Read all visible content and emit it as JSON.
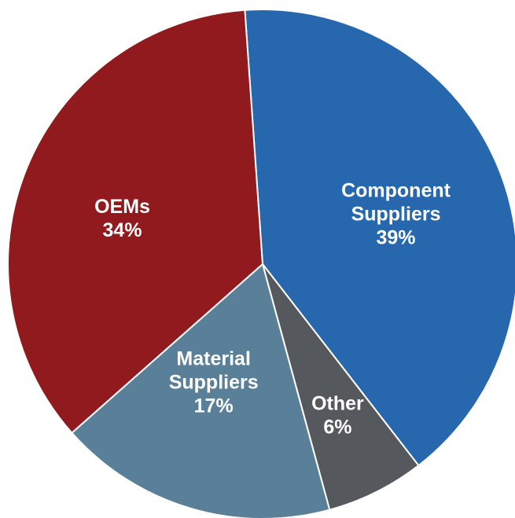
{
  "chart_data": {
    "type": "pie",
    "title": "",
    "legend": "none",
    "slices": [
      {
        "name": "Component Suppliers",
        "label_lines": [
          "Component",
          "Suppliers"
        ],
        "percent_label": "39%",
        "value": 39,
        "color": "#2767ae"
      },
      {
        "name": "Other",
        "label_lines": [
          "Other"
        ],
        "percent_label": "6%",
        "value": 6,
        "color": "#55585d"
      },
      {
        "name": "Material Suppliers",
        "label_lines": [
          "Material",
          "Suppliers"
        ],
        "percent_label": "17%",
        "value": 17,
        "color": "#5a8099"
      },
      {
        "name": "OEMs",
        "label_lines": [
          "OEMs"
        ],
        "percent_label": "34%",
        "value": 34,
        "color": "#901a1e"
      }
    ]
  }
}
